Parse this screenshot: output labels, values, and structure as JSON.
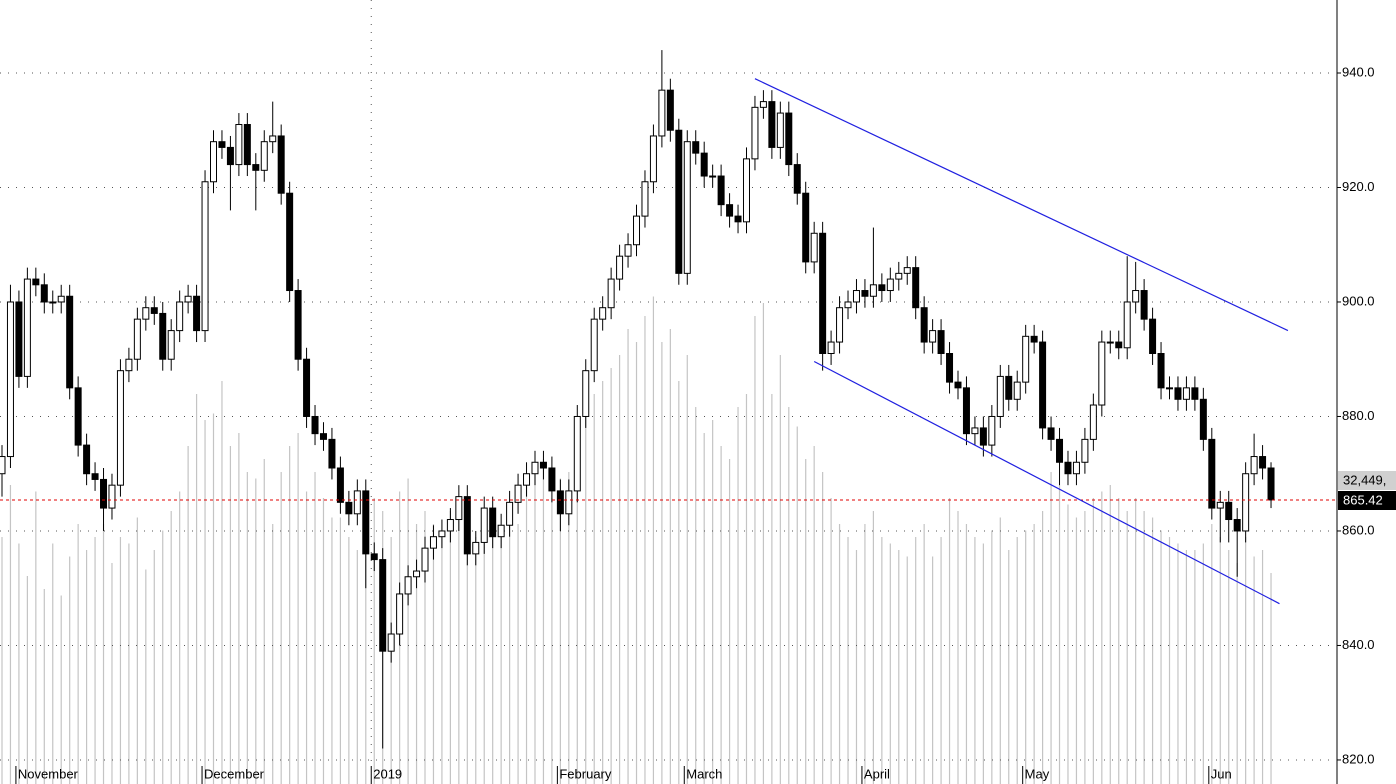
{
  "chart_data": {
    "type": "candlestick",
    "categories": [
      null,
      null,
      "November",
      null,
      null,
      null,
      null,
      null,
      null,
      null,
      null,
      null,
      null,
      null,
      null,
      null,
      null,
      null,
      null,
      null,
      null,
      null,
      null,
      null,
      "December",
      null,
      null,
      null,
      null,
      null,
      null,
      null,
      null,
      null,
      null,
      null,
      null,
      null,
      null,
      null,
      null,
      null,
      null,
      null,
      "2019",
      null,
      null,
      null,
      null,
      null,
      null,
      null,
      null,
      null,
      null,
      null,
      null,
      null,
      null,
      null,
      null,
      null,
      null,
      null,
      null,
      null,
      "February",
      null,
      null,
      null,
      null,
      null,
      null,
      null,
      null,
      null,
      null,
      null,
      null,
      null,
      null,
      "March",
      null,
      null,
      null,
      null,
      null,
      null,
      null,
      null,
      null,
      null,
      null,
      null,
      null,
      null,
      null,
      null,
      null,
      null,
      null,
      null,
      "April",
      null,
      null,
      null,
      null,
      null,
      null,
      null,
      null,
      null,
      null,
      null,
      null,
      null,
      null,
      null,
      null,
      null,
      null,
      "May",
      null,
      null,
      null,
      null,
      null,
      null,
      null,
      null,
      null,
      null,
      null,
      null,
      null,
      null,
      null,
      null,
      null,
      null,
      null,
      null,
      null,
      "Jun",
      null,
      null,
      null,
      null,
      null,
      null,
      null
    ],
    "open": [
      870,
      873,
      900,
      887,
      904,
      903,
      900,
      900,
      901,
      885,
      875,
      870,
      869,
      864,
      868,
      888,
      890,
      897,
      899,
      898,
      890,
      895,
      900,
      901,
      895,
      921,
      928,
      927,
      924,
      931,
      924,
      923,
      928,
      929,
      919,
      902,
      890,
      880,
      877,
      876,
      871,
      865,
      863,
      867,
      856,
      855,
      839,
      842,
      849,
      852,
      853,
      857,
      859,
      860,
      862,
      866,
      856,
      858,
      864,
      859,
      861,
      865,
      868,
      870,
      872,
      871,
      867,
      863,
      867,
      880,
      888,
      897,
      899,
      904,
      908,
      910,
      915,
      921,
      929,
      937,
      930,
      905,
      928,
      926,
      922,
      922,
      917,
      915,
      914,
      925,
      934,
      935,
      927,
      933,
      924,
      919,
      907,
      912,
      891,
      893,
      899,
      900,
      902,
      901,
      903,
      902,
      904,
      905,
      906,
      899,
      893,
      895,
      891,
      886,
      885,
      877,
      878,
      875,
      880,
      887,
      883,
      886,
      894,
      893,
      878,
      876,
      872,
      870,
      872,
      876,
      882,
      893,
      893,
      892,
      900,
      902,
      897,
      891,
      885,
      885,
      883,
      885,
      883,
      876,
      864,
      865,
      862,
      860,
      870,
      873,
      871
    ],
    "high": [
      875,
      903,
      902,
      906,
      906,
      905,
      902,
      903,
      903,
      887,
      877,
      872,
      871,
      870,
      890,
      892,
      899,
      901,
      901,
      900,
      897,
      902,
      903,
      903,
      923,
      930,
      930,
      929,
      933,
      933,
      926,
      930,
      935,
      931,
      921,
      904,
      892,
      882,
      879,
      878,
      873,
      867,
      869,
      869,
      858,
      857,
      844,
      851,
      854,
      855,
      859,
      861,
      862,
      864,
      868,
      868,
      860,
      866,
      866,
      863,
      867,
      870,
      872,
      874,
      874,
      873,
      869,
      869,
      882,
      890,
      899,
      901,
      906,
      910,
      912,
      917,
      923,
      931,
      944,
      939,
      932,
      930,
      930,
      928,
      924,
      924,
      919,
      917,
      927,
      936,
      937,
      937,
      935,
      935,
      926,
      921,
      914,
      914,
      895,
      901,
      902,
      904,
      904,
      913,
      905,
      906,
      907,
      908,
      908,
      901,
      897,
      897,
      893,
      888,
      887,
      880,
      880,
      882,
      889,
      889,
      888,
      896,
      896,
      895,
      880,
      878,
      874,
      874,
      878,
      884,
      895,
      895,
      895,
      908,
      907,
      904,
      899,
      893,
      887,
      887,
      887,
      887,
      885,
      878,
      867,
      867,
      864,
      872,
      877,
      875,
      872
    ],
    "low": [
      866,
      871,
      885,
      885,
      901,
      898,
      898,
      898,
      883,
      873,
      868,
      867,
      860,
      862,
      866,
      886,
      888,
      895,
      896,
      888,
      888,
      893,
      898,
      893,
      893,
      919,
      925,
      916,
      922,
      922,
      916,
      921,
      926,
      917,
      900,
      888,
      878,
      875,
      874,
      869,
      863,
      861,
      861,
      850,
      853,
      822,
      837,
      840,
      847,
      850,
      851,
      855,
      857,
      858,
      860,
      854,
      854,
      856,
      857,
      857,
      859,
      863,
      866,
      868,
      869,
      865,
      860,
      861,
      865,
      878,
      886,
      895,
      897,
      902,
      906,
      908,
      913,
      919,
      927,
      928,
      903,
      903,
      924,
      920,
      920,
      915,
      913,
      912,
      912,
      923,
      932,
      925,
      925,
      922,
      917,
      905,
      905,
      888,
      889,
      891,
      897,
      898,
      899,
      899,
      900,
      900,
      902,
      903,
      897,
      891,
      891,
      889,
      884,
      883,
      875,
      875,
      873,
      873,
      878,
      881,
      881,
      884,
      891,
      876,
      874,
      868,
      868,
      868,
      870,
      874,
      880,
      891,
      890,
      890,
      898,
      895,
      889,
      883,
      883,
      881,
      881,
      881,
      874,
      862,
      858,
      858,
      852,
      858,
      868,
      869,
      864
    ],
    "close": [
      873,
      900,
      887,
      904,
      903,
      900,
      900,
      901,
      885,
      875,
      870,
      869,
      864,
      868,
      888,
      890,
      897,
      899,
      898,
      890,
      895,
      900,
      901,
      895,
      921,
      928,
      927,
      924,
      931,
      924,
      923,
      928,
      929,
      919,
      902,
      890,
      880,
      877,
      876,
      871,
      865,
      863,
      867,
      856,
      855,
      839,
      842,
      849,
      852,
      853,
      857,
      859,
      860,
      862,
      866,
      856,
      858,
      864,
      859,
      861,
      865,
      868,
      870,
      872,
      871,
      867,
      863,
      867,
      880,
      888,
      897,
      899,
      904,
      908,
      910,
      915,
      921,
      929,
      937,
      930,
      905,
      928,
      926,
      922,
      922,
      917,
      915,
      914,
      925,
      934,
      935,
      927,
      933,
      924,
      919,
      907,
      912,
      891,
      893,
      899,
      900,
      902,
      901,
      903,
      902,
      904,
      905,
      906,
      899,
      893,
      895,
      891,
      886,
      885,
      877,
      878,
      875,
      880,
      887,
      883,
      886,
      894,
      893,
      878,
      876,
      872,
      870,
      872,
      876,
      882,
      893,
      893,
      892,
      900,
      902,
      897,
      891,
      885,
      885,
      883,
      885,
      883,
      876,
      864,
      865,
      862,
      860,
      870,
      873,
      871,
      865.42
    ],
    "volume": [
      38000,
      46000,
      37000,
      32000,
      45000,
      30000,
      37000,
      29000,
      35000,
      40000,
      36000,
      38000,
      40000,
      34000,
      38000,
      37000,
      41000,
      33000,
      36000,
      39000,
      42000,
      45000,
      52000,
      60000,
      56000,
      57000,
      62000,
      52000,
      54000,
      48000,
      47000,
      50000,
      40000,
      48000,
      52000,
      54000,
      45000,
      48000,
      44000,
      41000,
      41000,
      38000,
      36000,
      40000,
      44000,
      42000,
      38000,
      45000,
      47000,
      40000,
      42000,
      40000,
      38000,
      42000,
      44000,
      40000,
      38000,
      39000,
      41000,
      38000,
      42000,
      40000,
      46000,
      48000,
      50000,
      44000,
      47000,
      48000,
      55000,
      58000,
      60000,
      62000,
      64000,
      66000,
      70000,
      68000,
      72000,
      75000,
      68000,
      70000,
      62000,
      66000,
      58000,
      54000,
      56000,
      52000,
      50000,
      58000,
      60000,
      72000,
      74000,
      60000,
      66000,
      58000,
      55000,
      50000,
      52000,
      48000,
      44000,
      40000,
      38000,
      36000,
      40000,
      42000,
      38000,
      37000,
      36000,
      35000,
      38000,
      40000,
      35000,
      38000,
      44000,
      42000,
      40000,
      38000,
      37000,
      39000,
      41000,
      36000,
      38000,
      39000,
      40000,
      42000,
      48000,
      46000,
      43000,
      41000,
      42000,
      44000,
      45000,
      46000,
      44000,
      42000,
      44000,
      42000,
      41000,
      39000,
      38000,
      37000,
      36000,
      36000,
      37000,
      40000,
      38000,
      36000,
      34000,
      38000,
      35000,
      36000,
      32449
    ],
    "volume_label": "32,449,",
    "xlim": [
      -0.236,
      157.68
    ],
    "ylim": [
      815.8,
      952.75
    ],
    "yticks": [
      {
        "value": 820,
        "label": "820.0"
      },
      {
        "value": 840,
        "label": "840.0"
      },
      {
        "value": 860,
        "label": "860.0"
      },
      {
        "value": 880,
        "label": "880.0"
      },
      {
        "value": 900,
        "label": "900.0"
      },
      {
        "value": 920,
        "label": "920.0"
      },
      {
        "value": 940,
        "label": "940.0"
      }
    ],
    "y2lim": [
      0,
      120600
    ],
    "grid": true,
    "up_color": "#ffffff",
    "down_color": "#000000",
    "volume_color": "#c4c4c4",
    "last_line_color": "#e00000",
    "trendline_color": "#2020e0",
    "trendlines": [
      {
        "x": [
          89,
          152
        ],
        "y": [
          939,
          895
        ]
      },
      {
        "x": [
          96,
          151
        ],
        "y": [
          889.6,
          847.3
        ]
      }
    ]
  }
}
